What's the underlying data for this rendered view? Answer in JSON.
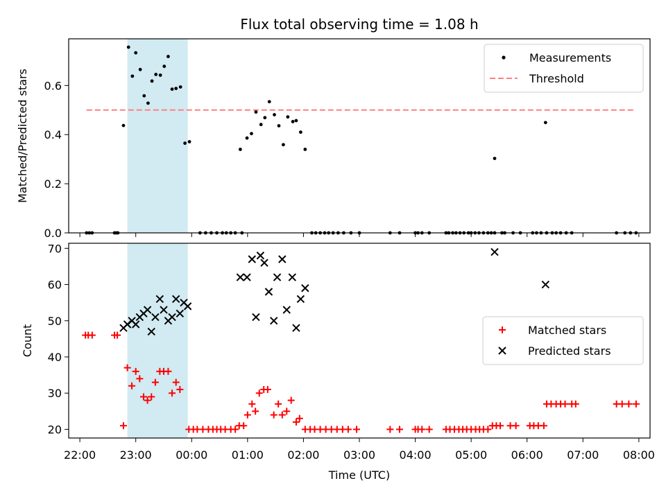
{
  "chart_data": [
    {
      "type": "scatter",
      "title": "Flux total observing time = 1.08 h",
      "xlabel": "",
      "ylabel": "Matched/Predicted stars",
      "x_unit": "hours since 22:00 UTC",
      "xlim": [
        -0.2,
        10.2
      ],
      "ylim": [
        0.0,
        0.79
      ],
      "yticks": [
        "0.0",
        "0.2",
        "0.4",
        "0.6"
      ],
      "legend": {
        "placement": "top-right",
        "entries": [
          "Measurements",
          "Threshold"
        ]
      },
      "shaded_region": {
        "x_start": 0.85,
        "x_end": 1.93,
        "color": "#add8e6"
      },
      "threshold": {
        "value": 0.5,
        "x_start": 0.12,
        "x_end": 9.92,
        "color": "#ff7f7f"
      },
      "series": [
        {
          "name": "Measurements",
          "color": "#000000",
          "points": [
            [
              0.12,
              0
            ],
            [
              0.17,
              0
            ],
            [
              0.22,
              0
            ],
            [
              0.62,
              0
            ],
            [
              0.65,
              0
            ],
            [
              0.68,
              0
            ],
            [
              0.78,
              0.437
            ],
            [
              0.87,
              0.756
            ],
            [
              0.94,
              0.638
            ],
            [
              1.0,
              0.733
            ],
            [
              1.08,
              0.665
            ],
            [
              1.15,
              0.558
            ],
            [
              1.22,
              0.528
            ],
            [
              1.29,
              0.618
            ],
            [
              1.36,
              0.645
            ],
            [
              1.44,
              0.642
            ],
            [
              1.51,
              0.678
            ],
            [
              1.58,
              0.718
            ],
            [
              1.65,
              0.585
            ],
            [
              1.72,
              0.588
            ],
            [
              1.8,
              0.594
            ],
            [
              1.88,
              0.365
            ],
            [
              1.96,
              0.371
            ],
            [
              2.15,
              0
            ],
            [
              2.25,
              0
            ],
            [
              2.35,
              0
            ],
            [
              2.45,
              0
            ],
            [
              2.55,
              0
            ],
            [
              2.62,
              0
            ],
            [
              2.7,
              0
            ],
            [
              2.78,
              0
            ],
            [
              2.9,
              0
            ],
            [
              2.87,
              0.34
            ],
            [
              2.99,
              0.386
            ],
            [
              3.07,
              0.404
            ],
            [
              3.15,
              0.492
            ],
            [
              3.24,
              0.441
            ],
            [
              3.31,
              0.469
            ],
            [
              3.39,
              0.534
            ],
            [
              3.48,
              0.481
            ],
            [
              3.56,
              0.436
            ],
            [
              3.64,
              0.359
            ],
            [
              3.72,
              0.472
            ],
            [
              3.81,
              0.453
            ],
            [
              3.87,
              0.457
            ],
            [
              3.95,
              0.41
            ],
            [
              4.03,
              0.34
            ],
            [
              4.15,
              0
            ],
            [
              4.22,
              0
            ],
            [
              4.3,
              0
            ],
            [
              4.38,
              0
            ],
            [
              4.45,
              0
            ],
            [
              4.53,
              0
            ],
            [
              4.62,
              0
            ],
            [
              4.72,
              0
            ],
            [
              4.85,
              0
            ],
            [
              5.0,
              0
            ],
            [
              5.55,
              0
            ],
            [
              5.72,
              0
            ],
            [
              6.0,
              0
            ],
            [
              6.05,
              0
            ],
            [
              6.12,
              0
            ],
            [
              6.25,
              0
            ],
            [
              6.55,
              0
            ],
            [
              6.6,
              0
            ],
            [
              6.67,
              0
            ],
            [
              6.73,
              0
            ],
            [
              6.8,
              0
            ],
            [
              6.87,
              0
            ],
            [
              6.95,
              0
            ],
            [
              7.0,
              0
            ],
            [
              7.07,
              0
            ],
            [
              7.14,
              0
            ],
            [
              7.22,
              0
            ],
            [
              7.3,
              0
            ],
            [
              7.36,
              0
            ],
            [
              7.42,
              0
            ],
            [
              7.55,
              0
            ],
            [
              7.6,
              0
            ],
            [
              7.75,
              0
            ],
            [
              7.88,
              0
            ],
            [
              8.1,
              0
            ],
            [
              8.17,
              0
            ],
            [
              8.25,
              0
            ],
            [
              8.35,
              0
            ],
            [
              8.45,
              0
            ],
            [
              8.52,
              0
            ],
            [
              8.6,
              0
            ],
            [
              8.7,
              0
            ],
            [
              8.8,
              0
            ],
            [
              9.6,
              0
            ],
            [
              9.75,
              0
            ],
            [
              9.85,
              0
            ],
            [
              9.95,
              0
            ],
            [
              7.42,
              0.303
            ],
            [
              8.33,
              0.449
            ]
          ]
        }
      ]
    },
    {
      "type": "scatter",
      "title": "",
      "xlabel": "Time (UTC)",
      "ylabel": "Count",
      "x_unit": "hours since 22:00 UTC",
      "xlim": [
        -0.2,
        10.2
      ],
      "ylim": [
        17.6,
        71.4
      ],
      "xticks": [
        {
          "value": 0,
          "label": "22:00"
        },
        {
          "value": 1,
          "label": "23:00"
        },
        {
          "value": 2,
          "label": "00:00"
        },
        {
          "value": 3,
          "label": "01:00"
        },
        {
          "value": 4,
          "label": "02:00"
        },
        {
          "value": 5,
          "label": "03:00"
        },
        {
          "value": 6,
          "label": "04:00"
        },
        {
          "value": 7,
          "label": "05:00"
        },
        {
          "value": 8,
          "label": "06:00"
        },
        {
          "value": 9,
          "label": "07:00"
        },
        {
          "value": 10,
          "label": "08:00"
        }
      ],
      "yticks": [
        20,
        30,
        40,
        50,
        60,
        70
      ],
      "legend": {
        "placement": "center-right",
        "entries": [
          "Matched stars",
          "Predicted stars"
        ]
      },
      "shaded_region": {
        "x_start": 0.85,
        "x_end": 1.93,
        "color": "#add8e6"
      },
      "series": [
        {
          "name": "Matched stars",
          "marker": "plus",
          "color": "#ff0000",
          "points": [
            [
              0.1,
              46
            ],
            [
              0.15,
              46
            ],
            [
              0.22,
              46
            ],
            [
              0.62,
              46
            ],
            [
              0.67,
              46
            ],
            [
              0.78,
              21
            ],
            [
              0.85,
              37
            ],
            [
              0.93,
              32
            ],
            [
              1.0,
              36
            ],
            [
              1.07,
              34
            ],
            [
              1.14,
              29
            ],
            [
              1.21,
              28
            ],
            [
              1.28,
              29
            ],
            [
              1.35,
              33
            ],
            [
              1.43,
              36
            ],
            [
              1.5,
              36
            ],
            [
              1.58,
              36
            ],
            [
              1.65,
              30
            ],
            [
              1.72,
              33
            ],
            [
              1.79,
              31
            ],
            [
              1.95,
              20
            ],
            [
              2.03,
              20
            ],
            [
              2.1,
              20
            ],
            [
              2.2,
              20
            ],
            [
              2.3,
              20
            ],
            [
              2.38,
              20
            ],
            [
              2.45,
              20
            ],
            [
              2.52,
              20
            ],
            [
              2.6,
              20
            ],
            [
              2.7,
              20
            ],
            [
              2.78,
              20
            ],
            [
              2.85,
              21
            ],
            [
              2.93,
              21
            ],
            [
              3.0,
              24
            ],
            [
              3.08,
              27
            ],
            [
              3.14,
              25
            ],
            [
              3.21,
              30
            ],
            [
              3.29,
              31
            ],
            [
              3.36,
              31
            ],
            [
              3.47,
              24
            ],
            [
              3.55,
              27
            ],
            [
              3.62,
              24
            ],
            [
              3.7,
              25
            ],
            [
              3.78,
              28
            ],
            [
              3.87,
              22
            ],
            [
              3.93,
              23
            ],
            [
              4.03,
              20
            ],
            [
              4.12,
              20
            ],
            [
              4.2,
              20
            ],
            [
              4.3,
              20
            ],
            [
              4.4,
              20
            ],
            [
              4.5,
              20
            ],
            [
              4.6,
              20
            ],
            [
              4.7,
              20
            ],
            [
              4.8,
              20
            ],
            [
              4.95,
              20
            ],
            [
              5.55,
              20
            ],
            [
              5.72,
              20
            ],
            [
              6.0,
              20
            ],
            [
              6.05,
              20
            ],
            [
              6.12,
              20
            ],
            [
              6.25,
              20
            ],
            [
              6.55,
              20
            ],
            [
              6.62,
              20
            ],
            [
              6.7,
              20
            ],
            [
              6.78,
              20
            ],
            [
              6.85,
              20
            ],
            [
              6.92,
              20
            ],
            [
              7.0,
              20
            ],
            [
              7.08,
              20
            ],
            [
              7.15,
              20
            ],
            [
              7.22,
              20
            ],
            [
              7.3,
              20
            ],
            [
              7.38,
              21
            ],
            [
              7.45,
              21
            ],
            [
              7.52,
              21
            ],
            [
              7.7,
              21
            ],
            [
              7.8,
              21
            ],
            [
              8.05,
              21
            ],
            [
              8.12,
              21
            ],
            [
              8.2,
              21
            ],
            [
              8.3,
              21
            ],
            [
              8.35,
              27
            ],
            [
              8.43,
              27
            ],
            [
              8.52,
              27
            ],
            [
              8.6,
              27
            ],
            [
              8.68,
              27
            ],
            [
              8.8,
              27
            ],
            [
              8.87,
              27
            ],
            [
              9.6,
              27
            ],
            [
              9.7,
              27
            ],
            [
              9.82,
              27
            ],
            [
              9.95,
              27
            ]
          ]
        },
        {
          "name": "Predicted stars",
          "marker": "x",
          "color": "#000000",
          "points": [
            [
              0.78,
              48
            ],
            [
              0.85,
              49
            ],
            [
              0.93,
              50
            ],
            [
              1.0,
              49
            ],
            [
              1.07,
              51
            ],
            [
              1.14,
              52
            ],
            [
              1.21,
              53
            ],
            [
              1.28,
              47
            ],
            [
              1.35,
              51
            ],
            [
              1.43,
              56
            ],
            [
              1.5,
              53
            ],
            [
              1.58,
              50
            ],
            [
              1.65,
              51
            ],
            [
              1.72,
              56
            ],
            [
              1.79,
              52
            ],
            [
              1.86,
              55
            ],
            [
              1.93,
              54
            ],
            [
              2.87,
              62
            ],
            [
              2.99,
              62
            ],
            [
              3.08,
              67
            ],
            [
              3.15,
              51
            ],
            [
              3.23,
              68
            ],
            [
              3.3,
              66
            ],
            [
              3.38,
              58
            ],
            [
              3.47,
              50
            ],
            [
              3.53,
              62
            ],
            [
              3.62,
              67
            ],
            [
              3.7,
              53
            ],
            [
              3.8,
              62
            ],
            [
              3.87,
              48
            ],
            [
              3.95,
              56
            ],
            [
              4.03,
              59
            ],
            [
              7.42,
              69
            ],
            [
              8.33,
              60
            ]
          ]
        }
      ]
    }
  ]
}
